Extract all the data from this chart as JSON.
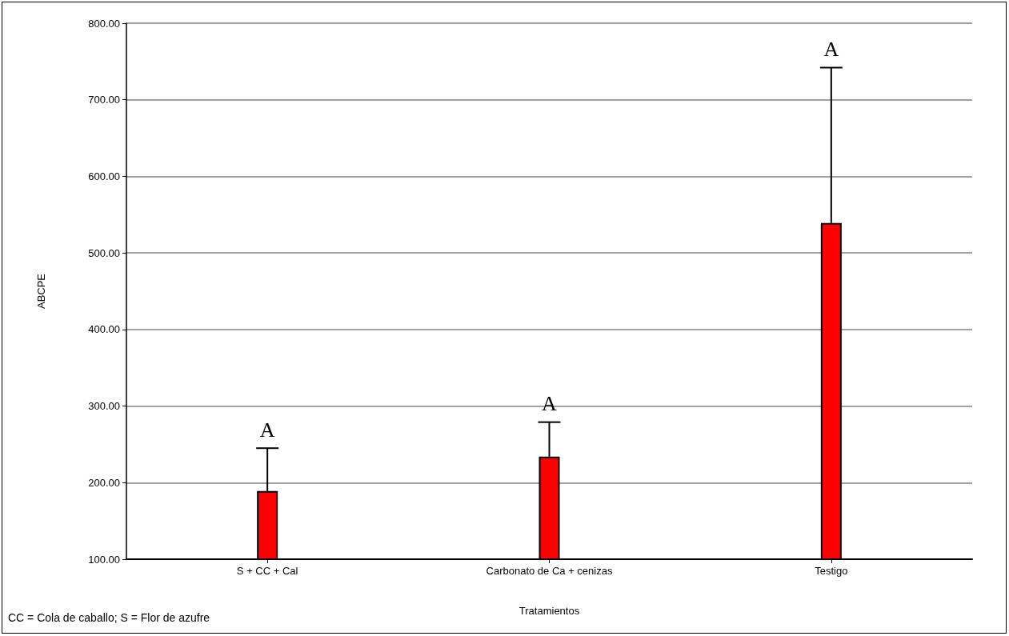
{
  "chart_data": {
    "type": "bar",
    "xlabel": "Tratamientos",
    "ylabel": "ABCPE",
    "categories": [
      "S + CC + Cal",
      "Carbonato de Ca + cenizas",
      "Testigo"
    ],
    "values": [
      189,
      234,
      539
    ],
    "color": "#ff0000",
    "errors": [
      [
        189,
        245
      ],
      [
        234,
        279
      ],
      [
        539,
        742
      ]
    ],
    "ylim": [
      100,
      800
    ],
    "yticks": [
      {
        "value": 100,
        "label": "100.00"
      },
      {
        "value": 200,
        "label": "200.00"
      },
      {
        "value": 300,
        "label": "300.00"
      },
      {
        "value": 400,
        "label": "400.00"
      },
      {
        "value": 500,
        "label": "500.00"
      },
      {
        "value": 600,
        "label": "600.00"
      },
      {
        "value": 700,
        "label": "700.00"
      },
      {
        "value": 800,
        "label": "800.00"
      }
    ],
    "grid": "y",
    "annotations": [
      "A",
      "A",
      "A",
      "CC = Cola de caballo; S = Flor de azufre"
    ]
  }
}
